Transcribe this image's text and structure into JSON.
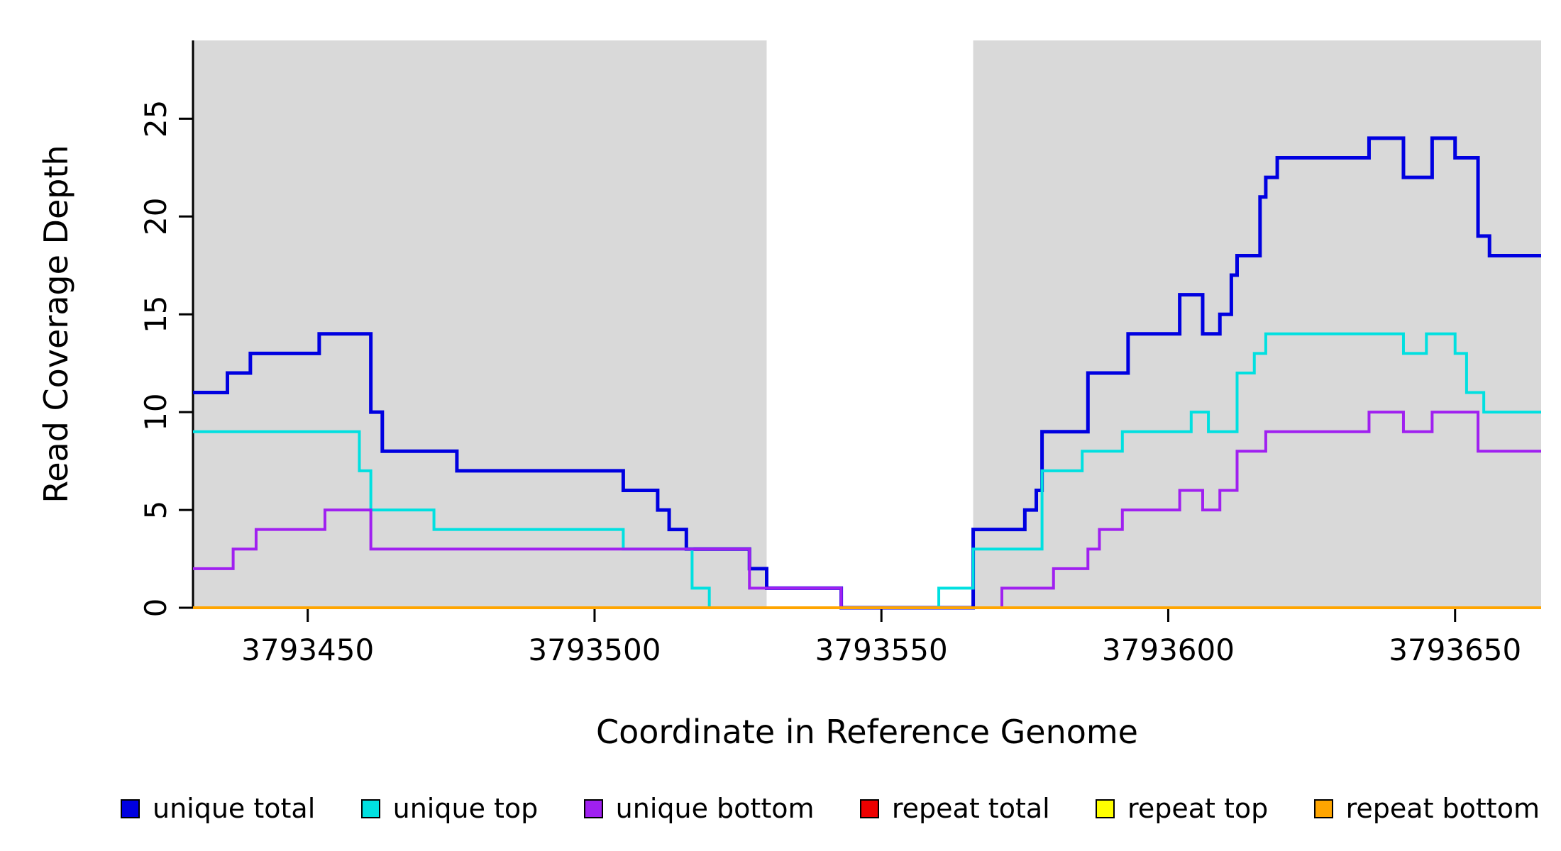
{
  "chart_data": {
    "type": "line",
    "subtype": "step",
    "title": "",
    "xlabel": "Coordinate in Reference Genome",
    "ylabel": "Read Coverage Depth",
    "xlim": [
      3793430,
      3793665
    ],
    "ylim": [
      0,
      29
    ],
    "xticks": [
      3793450,
      3793500,
      3793550,
      3793600,
      3793650
    ],
    "yticks": [
      0,
      5,
      10,
      15,
      20,
      25
    ],
    "grid": false,
    "legend_position": "bottom",
    "background": "#ffffff",
    "axis_color": "#000000",
    "shaded_regions": [
      {
        "x0": 3793430,
        "x1": 3793530,
        "color": "#d9d9d9"
      },
      {
        "x0": 3793566,
        "x1": 3793665,
        "color": "#d9d9d9"
      }
    ],
    "series": [
      {
        "name": "unique total",
        "color": "#0000e0",
        "line_width": 5,
        "steps": [
          [
            3793430,
            11
          ],
          [
            3793436,
            12
          ],
          [
            3793440,
            13
          ],
          [
            3793452,
            14
          ],
          [
            3793461,
            10
          ],
          [
            3793463,
            8
          ],
          [
            3793476,
            7
          ],
          [
            3793505,
            6
          ],
          [
            3793511,
            5
          ],
          [
            3793513,
            4
          ],
          [
            3793516,
            3
          ],
          [
            3793527,
            2
          ],
          [
            3793530,
            1
          ],
          [
            3793543,
            0
          ],
          [
            3793566,
            4
          ],
          [
            3793575,
            5
          ],
          [
            3793577,
            6
          ],
          [
            3793578,
            9
          ],
          [
            3793586,
            12
          ],
          [
            3793593,
            14
          ],
          [
            3793602,
            16
          ],
          [
            3793606,
            14
          ],
          [
            3793609,
            15
          ],
          [
            3793611,
            17
          ],
          [
            3793612,
            18
          ],
          [
            3793616,
            21
          ],
          [
            3793617,
            22
          ],
          [
            3793619,
            23
          ],
          [
            3793635,
            24
          ],
          [
            3793641,
            22
          ],
          [
            3793646,
            24
          ],
          [
            3793650,
            23
          ],
          [
            3793654,
            19
          ],
          [
            3793656,
            18
          ]
        ]
      },
      {
        "name": "unique top",
        "color": "#00e0e0",
        "line_width": 4,
        "steps": [
          [
            3793430,
            9
          ],
          [
            3793459,
            7
          ],
          [
            3793461,
            5
          ],
          [
            3793472,
            4
          ],
          [
            3793505,
            3
          ],
          [
            3793517,
            1
          ],
          [
            3793520,
            0
          ],
          [
            3793560,
            1
          ],
          [
            3793566,
            3
          ],
          [
            3793578,
            7
          ],
          [
            3793585,
            8
          ],
          [
            3793592,
            9
          ],
          [
            3793604,
            10
          ],
          [
            3793607,
            9
          ],
          [
            3793612,
            12
          ],
          [
            3793615,
            13
          ],
          [
            3793617,
            14
          ],
          [
            3793641,
            13
          ],
          [
            3793645,
            14
          ],
          [
            3793650,
            13
          ],
          [
            3793652,
            11
          ],
          [
            3793655,
            10
          ]
        ]
      },
      {
        "name": "unique bottom",
        "color": "#a020f0",
        "line_width": 4,
        "steps": [
          [
            3793430,
            2
          ],
          [
            3793437,
            3
          ],
          [
            3793441,
            4
          ],
          [
            3793453,
            5
          ],
          [
            3793461,
            3
          ],
          [
            3793527,
            1
          ],
          [
            3793543,
            0
          ],
          [
            3793571,
            1
          ],
          [
            3793580,
            2
          ],
          [
            3793586,
            3
          ],
          [
            3793588,
            4
          ],
          [
            3793592,
            5
          ],
          [
            3793602,
            6
          ],
          [
            3793606,
            5
          ],
          [
            3793609,
            6
          ],
          [
            3793612,
            8
          ],
          [
            3793617,
            9
          ],
          [
            3793635,
            10
          ],
          [
            3793641,
            9
          ],
          [
            3793646,
            10
          ],
          [
            3793654,
            8
          ]
        ]
      },
      {
        "name": "repeat total",
        "color": "#ee0000",
        "line_width": 4,
        "steps": [
          [
            3793430,
            0
          ]
        ]
      },
      {
        "name": "repeat top",
        "color": "#ffff00",
        "line_width": 4,
        "steps": [
          [
            3793430,
            0
          ]
        ]
      },
      {
        "name": "repeat bottom",
        "color": "#ffa500",
        "line_width": 4,
        "steps": [
          [
            3793430,
            0
          ]
        ]
      }
    ]
  }
}
